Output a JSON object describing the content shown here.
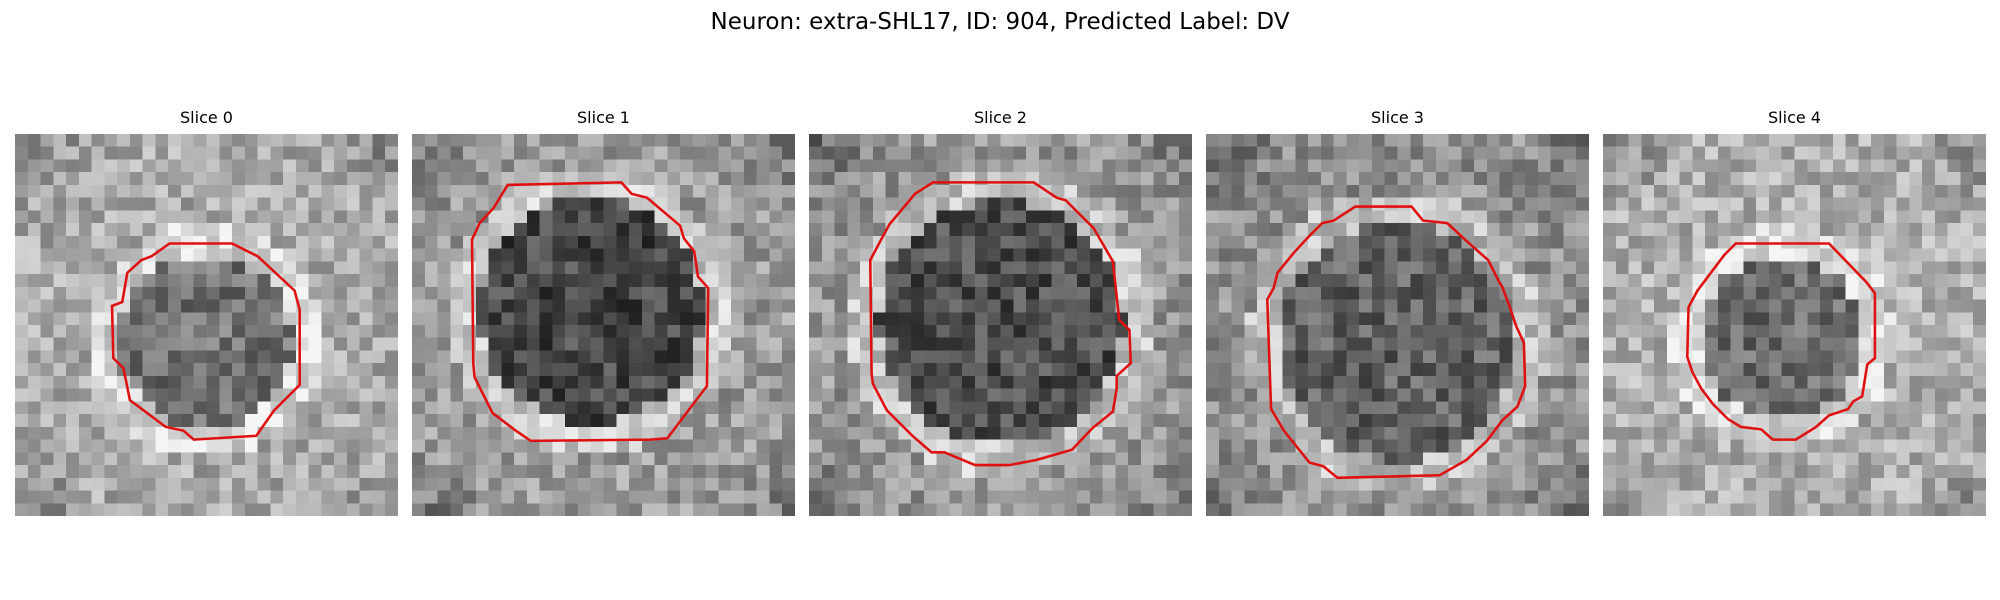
{
  "figure": {
    "title": "Neuron: extra-SHL17, ID: 904, Predicted Label: DV",
    "contour_color": "#e01010",
    "colormap": "gray",
    "grid_cells": 30
  },
  "slices": [
    {
      "title": "Slice 0"
    },
    {
      "title": "Slice 1"
    },
    {
      "title": "Slice 2"
    },
    {
      "title": "Slice 3"
    },
    {
      "title": "Slice 4"
    }
  ]
}
